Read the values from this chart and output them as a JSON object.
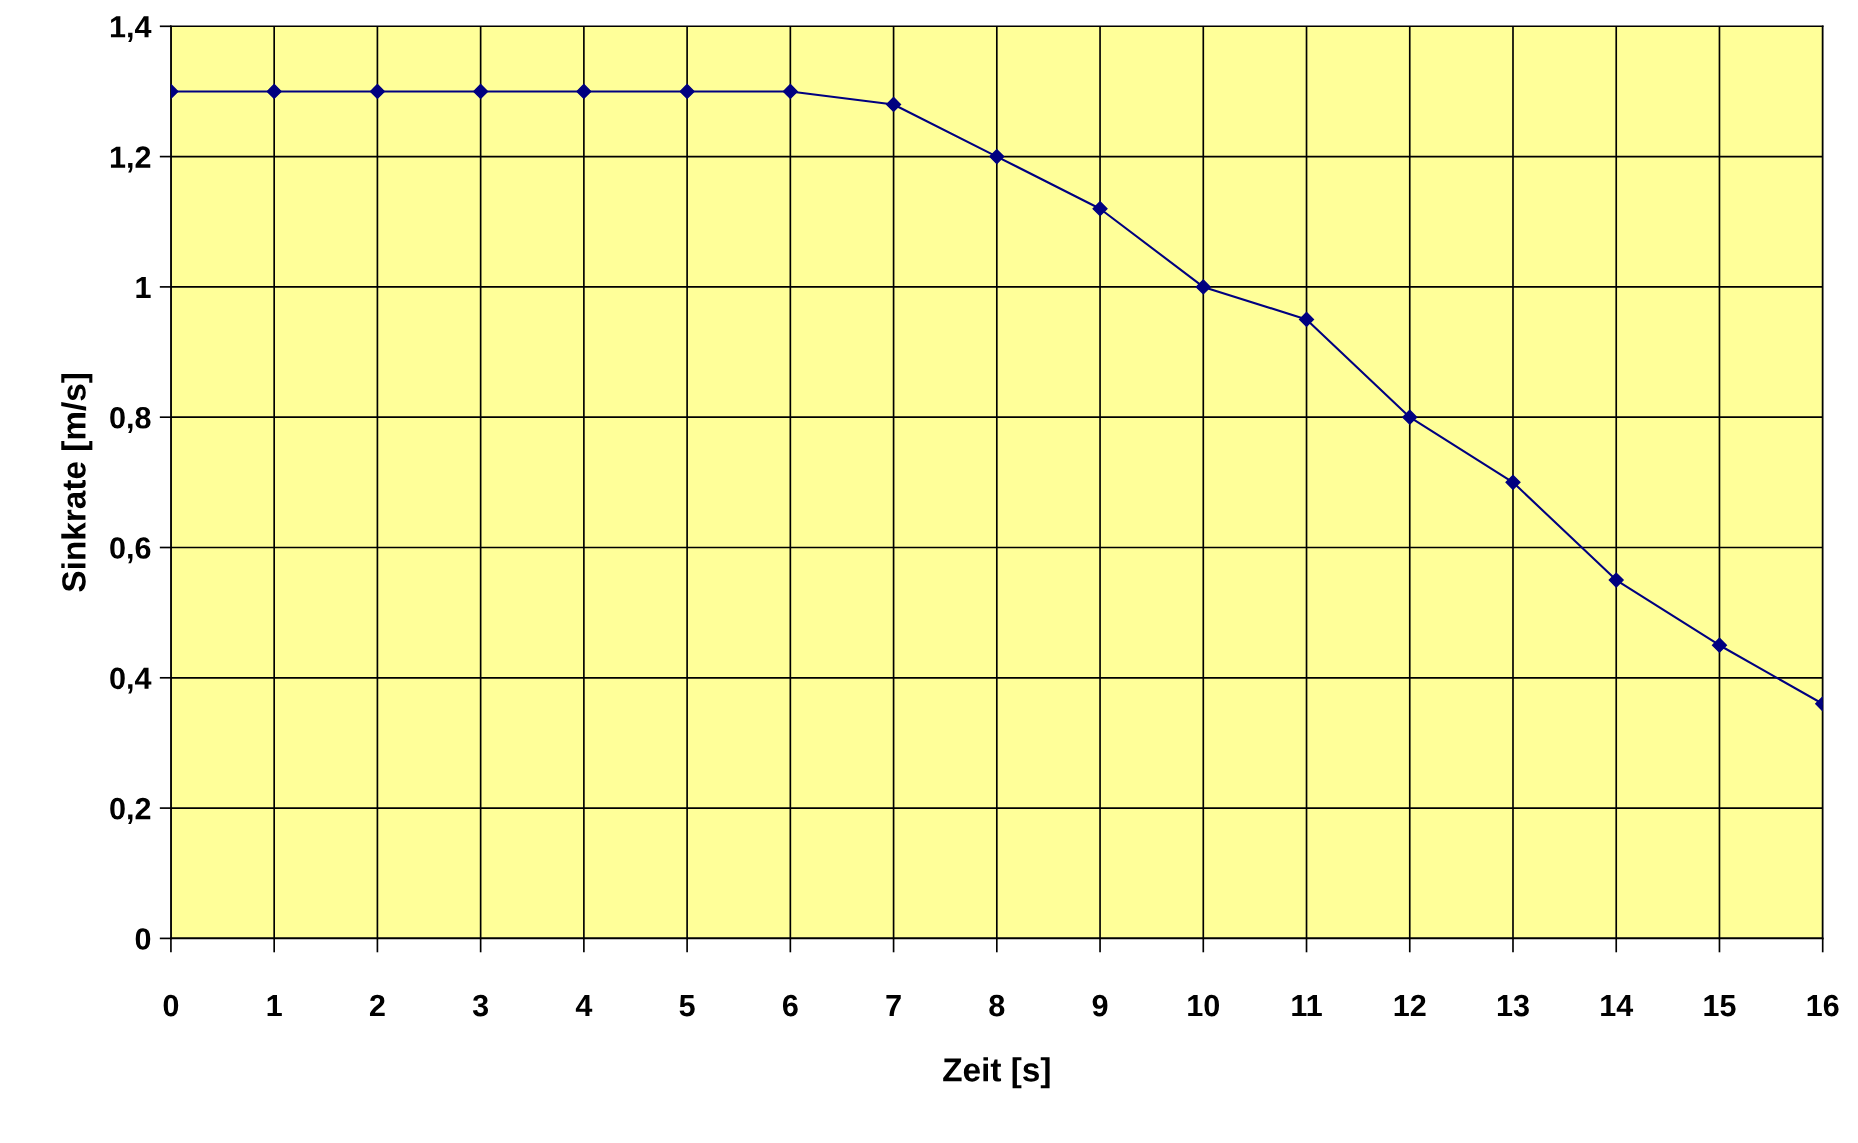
{
  "chart_data": {
    "type": "line",
    "xlabel": "Zeit [s]",
    "ylabel": "Sinkrate [m/s]",
    "x": [
      0,
      1,
      2,
      3,
      4,
      5,
      6,
      7,
      8,
      9,
      10,
      11,
      12,
      13,
      14,
      15,
      16
    ],
    "series": [
      {
        "color": "#000080",
        "values": [
          1.3,
          1.3,
          1.3,
          1.3,
          1.3,
          1.3,
          1.3,
          1.28,
          1.2,
          1.12,
          1.0,
          0.95,
          0.8,
          0.7,
          0.55,
          0.45,
          0.36
        ]
      }
    ],
    "xlim": [
      0,
      16
    ],
    "xticks": [
      0,
      1,
      2,
      3,
      4,
      5,
      6,
      7,
      8,
      9,
      10,
      11,
      12,
      13,
      14,
      15,
      16
    ],
    "ylim": [
      0,
      1.4
    ],
    "yticks": [
      0,
      {
        "value": 0.2,
        "label": "0,2"
      },
      {
        "value": 0.4,
        "label": "0,4"
      },
      {
        "value": 0.6,
        "label": "0,6"
      },
      {
        "value": 0.8,
        "label": "0,8"
      },
      1,
      {
        "value": 1.2,
        "label": "1,2"
      },
      {
        "value": 1.4,
        "label": "1,4"
      }
    ],
    "grid": true,
    "marker": "diamond",
    "line_style": "solid"
  }
}
